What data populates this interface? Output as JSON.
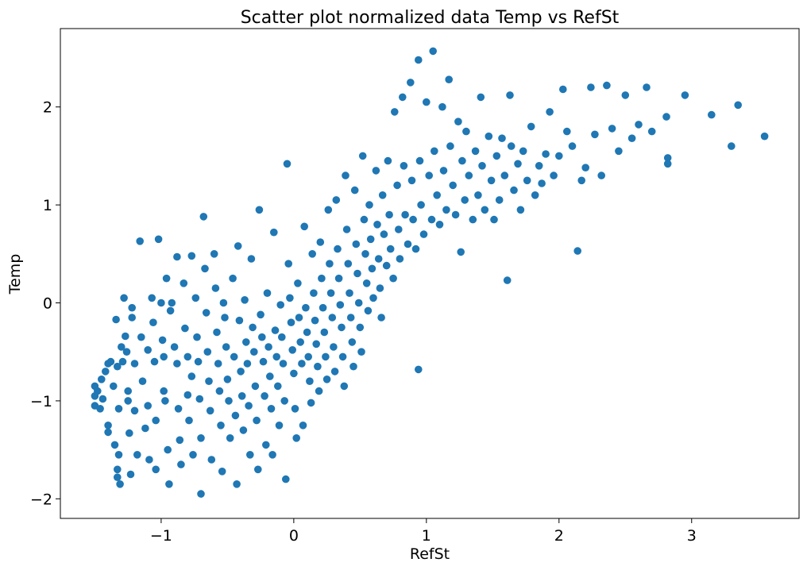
{
  "chart_data": {
    "type": "scatter",
    "title": "Scatter plot normalized data Temp vs RefSt",
    "xlabel": "RefSt",
    "ylabel": "Temp",
    "xlim": [
      -1.76,
      3.81
    ],
    "ylim": [
      -2.2,
      2.8
    ],
    "xticks": [
      -1,
      0,
      1,
      2,
      3
    ],
    "yticks": [
      -2,
      -1,
      0,
      1,
      2
    ],
    "xtick_labels": [
      "−1",
      "0",
      "1",
      "2",
      "3"
    ],
    "ytick_labels": [
      "−2",
      "−1",
      "0",
      "1",
      "2"
    ],
    "grid": false,
    "marker_color": "#1f77b4",
    "series": [
      {
        "points": [
          [
            -1.5,
            -0.85
          ],
          [
            -1.5,
            -0.95
          ],
          [
            -1.5,
            -1.05
          ],
          [
            -1.48,
            -0.9
          ],
          [
            -1.46,
            -1.08
          ],
          [
            -1.45,
            -0.78
          ],
          [
            -1.44,
            -0.98
          ],
          [
            -1.42,
            -0.7
          ],
          [
            -1.4,
            -0.62
          ],
          [
            -1.4,
            -1.25
          ],
          [
            -1.4,
            -1.32
          ],
          [
            -1.38,
            -0.6
          ],
          [
            -1.36,
            -0.85
          ],
          [
            -1.35,
            -1.45
          ],
          [
            -1.33,
            -0.65
          ],
          [
            -1.34,
            -0.17
          ],
          [
            -1.32,
            -1.08
          ],
          [
            -1.32,
            -1.55
          ],
          [
            -1.33,
            -1.7
          ],
          [
            -1.33,
            -1.78
          ],
          [
            -1.31,
            -1.85
          ],
          [
            -1.3,
            -0.45
          ],
          [
            -1.29,
            -0.6
          ],
          [
            -1.28,
            0.05
          ],
          [
            -1.27,
            -0.34
          ],
          [
            -1.26,
            -0.5
          ],
          [
            -1.25,
            -0.9
          ],
          [
            -1.25,
            -1.0
          ],
          [
            -1.24,
            -1.33
          ],
          [
            -1.23,
            -1.75
          ],
          [
            -1.22,
            -0.05
          ],
          [
            -1.22,
            -0.15
          ],
          [
            -1.2,
            -0.62
          ],
          [
            -1.2,
            -1.1
          ],
          [
            -1.18,
            -1.55
          ],
          [
            -1.16,
            0.63
          ],
          [
            -1.15,
            -0.35
          ],
          [
            -1.14,
            -0.8
          ],
          [
            -1.12,
            -1.28
          ],
          [
            -1.1,
            -0.48
          ],
          [
            -1.1,
            -1.05
          ],
          [
            -1.09,
            -1.6
          ],
          [
            -1.07,
            0.05
          ],
          [
            -1.06,
            -0.2
          ],
          [
            -1.05,
            -0.6
          ],
          [
            -1.04,
            -1.2
          ],
          [
            -1.04,
            -1.7
          ],
          [
            -1.02,
            0.65
          ],
          [
            -1.0,
            -0.0
          ],
          [
            -0.99,
            -0.38
          ],
          [
            -0.98,
            -0.55
          ],
          [
            -0.98,
            -0.9
          ],
          [
            -0.97,
            -1.0
          ],
          [
            -0.96,
            0.25
          ],
          [
            -0.95,
            -1.5
          ],
          [
            -0.94,
            -1.85
          ],
          [
            -0.93,
            -0.08
          ],
          [
            -0.92,
            -0.0
          ],
          [
            -0.9,
            -0.45
          ],
          [
            -0.88,
            0.47
          ],
          [
            -0.88,
            -0.62
          ],
          [
            -0.87,
            -1.08
          ],
          [
            -0.86,
            -1.4
          ],
          [
            -0.85,
            -1.65
          ],
          [
            -0.83,
            0.2
          ],
          [
            -0.82,
            -0.26
          ],
          [
            -0.8,
            -0.55
          ],
          [
            -0.8,
            -0.94
          ],
          [
            -0.79,
            -1.2
          ],
          [
            -0.77,
            0.48
          ],
          [
            -0.77,
            -0.75
          ],
          [
            -0.76,
            -1.55
          ],
          [
            -0.74,
            0.05
          ],
          [
            -0.73,
            -0.35
          ],
          [
            -0.72,
            -0.6
          ],
          [
            -0.71,
            -0.98
          ],
          [
            -0.7,
            -1.38
          ],
          [
            -0.7,
            -1.95
          ],
          [
            -0.68,
            0.88
          ],
          [
            -0.67,
            0.35
          ],
          [
            -0.66,
            -0.1
          ],
          [
            -0.65,
            -0.5
          ],
          [
            -0.64,
            -0.8
          ],
          [
            -0.63,
            -1.1
          ],
          [
            -0.62,
            -1.6
          ],
          [
            -0.6,
            0.5
          ],
          [
            -0.59,
            0.15
          ],
          [
            -0.58,
            -0.3
          ],
          [
            -0.57,
            -0.62
          ],
          [
            -0.56,
            -0.9
          ],
          [
            -0.55,
            -1.25
          ],
          [
            -0.54,
            -1.72
          ],
          [
            -0.53,
            0.0
          ],
          [
            -0.52,
            -0.15
          ],
          [
            -0.51,
            -0.45
          ],
          [
            -0.5,
            -0.78
          ],
          [
            -0.49,
            -1.0
          ],
          [
            -0.48,
            -1.38
          ],
          [
            -0.46,
            0.25
          ],
          [
            -0.45,
            -0.55
          ],
          [
            -0.44,
            -1.15
          ],
          [
            -0.43,
            -1.85
          ],
          [
            -0.42,
            0.58
          ],
          [
            -0.41,
            -0.18
          ],
          [
            -0.4,
            -0.7
          ],
          [
            -0.39,
            -0.95
          ],
          [
            -0.38,
            -1.3
          ],
          [
            -0.37,
            0.03
          ],
          [
            -0.36,
            -0.4
          ],
          [
            -0.35,
            -0.62
          ],
          [
            -0.34,
            -1.05
          ],
          [
            -0.33,
            -1.55
          ],
          [
            -0.32,
            0.45
          ],
          [
            -0.31,
            -0.25
          ],
          [
            -0.3,
            -0.5
          ],
          [
            -0.29,
            -0.85
          ],
          [
            -0.28,
            -1.2
          ],
          [
            -0.27,
            -1.7
          ],
          [
            -0.26,
            0.95
          ],
          [
            -0.25,
            -0.12
          ],
          [
            -0.24,
            -0.35
          ],
          [
            -0.23,
            -0.6
          ],
          [
            -0.22,
            -0.95
          ],
          [
            -0.21,
            -1.45
          ],
          [
            -0.2,
            0.1
          ],
          [
            -0.19,
            -0.45
          ],
          [
            -0.18,
            -0.75
          ],
          [
            -0.17,
            -1.08
          ],
          [
            -0.16,
            -1.55
          ],
          [
            -0.15,
            0.72
          ],
          [
            -0.14,
            -0.28
          ],
          [
            -0.13,
            -0.55
          ],
          [
            -0.12,
            -0.85
          ],
          [
            -0.11,
            -1.25
          ],
          [
            -0.1,
            -0.02
          ],
          [
            -0.09,
            -0.35
          ],
          [
            -0.08,
            -0.62
          ],
          [
            -0.07,
            -1.0
          ],
          [
            -0.06,
            -1.8
          ],
          [
            -0.05,
            1.42
          ],
          [
            -0.04,
            0.4
          ],
          [
            -0.03,
            0.05
          ],
          [
            -0.02,
            -0.2
          ],
          [
            -0.01,
            -0.48
          ],
          [
            0.0,
            -0.72
          ],
          [
            0.01,
            -1.08
          ],
          [
            0.02,
            -1.38
          ],
          [
            0.03,
            0.2
          ],
          [
            0.04,
            -0.15
          ],
          [
            0.05,
            -0.4
          ],
          [
            0.06,
            -0.62
          ],
          [
            0.07,
            -1.25
          ],
          [
            0.08,
            0.78
          ],
          [
            0.09,
            -0.05
          ],
          [
            0.1,
            -0.3
          ],
          [
            0.11,
            -0.55
          ],
          [
            0.12,
            -0.8
          ],
          [
            0.13,
            -1.02
          ],
          [
            0.14,
            0.5
          ],
          [
            0.15,
            0.1
          ],
          [
            0.16,
            -0.18
          ],
          [
            0.17,
            -0.42
          ],
          [
            0.18,
            -0.65
          ],
          [
            0.19,
            -0.9
          ],
          [
            0.2,
            0.62
          ],
          [
            0.21,
            0.25
          ],
          [
            0.22,
            -0.05
          ],
          [
            0.23,
            -0.3
          ],
          [
            0.24,
            -0.55
          ],
          [
            0.25,
            -0.78
          ],
          [
            0.26,
            0.95
          ],
          [
            0.27,
            0.4
          ],
          [
            0.28,
            0.1
          ],
          [
            0.29,
            -0.15
          ],
          [
            0.3,
            -0.45
          ],
          [
            0.31,
            -0.7
          ],
          [
            0.32,
            1.05
          ],
          [
            0.33,
            0.55
          ],
          [
            0.34,
            0.25
          ],
          [
            0.35,
            -0.02
          ],
          [
            0.36,
            -0.25
          ],
          [
            0.37,
            -0.55
          ],
          [
            0.38,
            -0.85
          ],
          [
            0.39,
            1.3
          ],
          [
            0.4,
            0.75
          ],
          [
            0.41,
            0.4
          ],
          [
            0.42,
            0.1
          ],
          [
            0.43,
            -0.15
          ],
          [
            0.44,
            -0.4
          ],
          [
            0.45,
            -0.65
          ],
          [
            0.46,
            1.15
          ],
          [
            0.47,
            0.6
          ],
          [
            0.48,
            0.3
          ],
          [
            0.49,
            0.0
          ],
          [
            0.5,
            -0.25
          ],
          [
            0.51,
            -0.5
          ],
          [
            0.52,
            1.5
          ],
          [
            0.53,
            0.85
          ],
          [
            0.54,
            0.5
          ],
          [
            0.55,
            0.2
          ],
          [
            0.56,
            -0.08
          ],
          [
            0.57,
            1.0
          ],
          [
            0.58,
            0.65
          ],
          [
            0.59,
            0.35
          ],
          [
            0.6,
            0.05
          ],
          [
            0.62,
            1.35
          ],
          [
            0.63,
            0.8
          ],
          [
            0.64,
            0.45
          ],
          [
            0.65,
            0.15
          ],
          [
            0.66,
            -0.15
          ],
          [
            0.67,
            1.1
          ],
          [
            0.68,
            0.7
          ],
          [
            0.7,
            0.38
          ],
          [
            0.71,
            1.45
          ],
          [
            0.72,
            0.9
          ],
          [
            0.73,
            0.55
          ],
          [
            0.75,
            0.25
          ],
          [
            0.76,
            1.95
          ],
          [
            0.78,
            1.2
          ],
          [
            0.79,
            0.75
          ],
          [
            0.8,
            0.45
          ],
          [
            0.82,
            2.1
          ],
          [
            0.83,
            1.4
          ],
          [
            0.84,
            0.9
          ],
          [
            0.86,
            0.6
          ],
          [
            0.88,
            2.25
          ],
          [
            0.89,
            1.25
          ],
          [
            0.9,
            0.85
          ],
          [
            0.92,
            0.55
          ],
          [
            0.94,
            -0.68
          ],
          [
            0.94,
            2.48
          ],
          [
            0.95,
            1.45
          ],
          [
            0.96,
            1.0
          ],
          [
            0.98,
            0.7
          ],
          [
            1.0,
            2.05
          ],
          [
            1.02,
            1.3
          ],
          [
            1.04,
            0.85
          ],
          [
            1.05,
            2.57
          ],
          [
            1.06,
            1.55
          ],
          [
            1.08,
            1.1
          ],
          [
            1.1,
            0.8
          ],
          [
            1.12,
            2.0
          ],
          [
            1.13,
            1.35
          ],
          [
            1.15,
            0.95
          ],
          [
            1.17,
            2.28
          ],
          [
            1.18,
            1.6
          ],
          [
            1.2,
            1.2
          ],
          [
            1.22,
            0.9
          ],
          [
            1.24,
            1.85
          ],
          [
            1.26,
            0.52
          ],
          [
            1.27,
            1.45
          ],
          [
            1.29,
            1.05
          ],
          [
            1.3,
            1.75
          ],
          [
            1.32,
            1.3
          ],
          [
            1.35,
            0.85
          ],
          [
            1.37,
            1.55
          ],
          [
            1.39,
            1.1
          ],
          [
            1.41,
            2.1
          ],
          [
            1.42,
            1.4
          ],
          [
            1.44,
            0.95
          ],
          [
            1.47,
            1.7
          ],
          [
            1.49,
            1.25
          ],
          [
            1.51,
            0.85
          ],
          [
            1.53,
            1.5
          ],
          [
            1.55,
            1.05
          ],
          [
            1.57,
            1.68
          ],
          [
            1.59,
            1.3
          ],
          [
            1.61,
            0.23
          ],
          [
            1.63,
            2.12
          ],
          [
            1.64,
            1.6
          ],
          [
            1.66,
            1.15
          ],
          [
            1.69,
            1.42
          ],
          [
            1.71,
            0.95
          ],
          [
            1.73,
            1.55
          ],
          [
            1.76,
            1.25
          ],
          [
            1.79,
            1.8
          ],
          [
            1.82,
            1.1
          ],
          [
            1.85,
            1.4
          ],
          [
            1.87,
            1.22
          ],
          [
            1.9,
            1.52
          ],
          [
            1.93,
            1.95
          ],
          [
            1.96,
            1.3
          ],
          [
            2.0,
            1.5
          ],
          [
            2.03,
            2.18
          ],
          [
            2.06,
            1.75
          ],
          [
            2.1,
            1.6
          ],
          [
            2.14,
            0.53
          ],
          [
            2.17,
            1.25
          ],
          [
            2.2,
            1.38
          ],
          [
            2.24,
            2.2
          ],
          [
            2.27,
            1.72
          ],
          [
            2.32,
            1.3
          ],
          [
            2.36,
            2.22
          ],
          [
            2.4,
            1.78
          ],
          [
            2.45,
            1.55
          ],
          [
            2.5,
            2.12
          ],
          [
            2.55,
            1.68
          ],
          [
            2.6,
            1.82
          ],
          [
            2.66,
            2.2
          ],
          [
            2.7,
            1.75
          ],
          [
            2.81,
            1.9
          ],
          [
            2.82,
            1.48
          ],
          [
            2.82,
            1.42
          ],
          [
            2.95,
            2.12
          ],
          [
            3.15,
            1.92
          ],
          [
            3.3,
            1.6
          ],
          [
            3.35,
            2.02
          ],
          [
            3.55,
            1.7
          ]
        ]
      }
    ]
  }
}
